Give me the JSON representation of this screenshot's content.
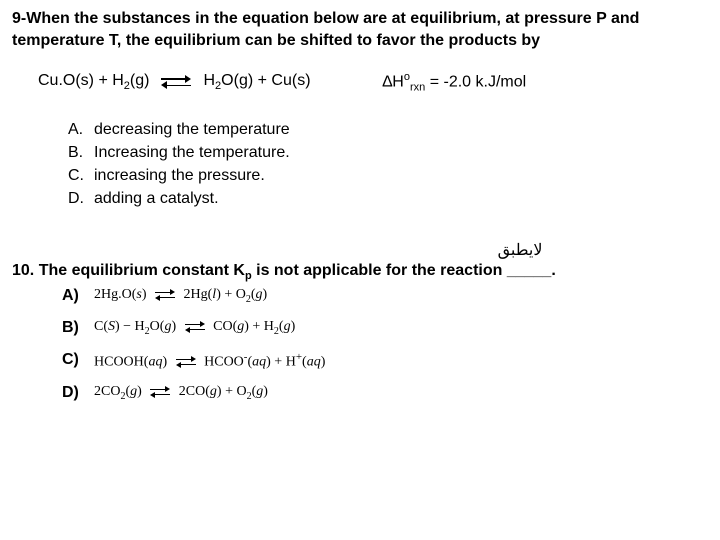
{
  "q9": {
    "header": "9-When the substances in the equation below are at equilibrium, at pressure P and temperature T, the equilibrium can be shifted to favor the products by",
    "left": "Cu.O(s) + H",
    "left_sub": "2",
    "left_tail": "(g)",
    "right_a": "H",
    "right_a_sub": "2",
    "right_b": "O(g) + Cu(s)",
    "dh_delta": "∆H",
    "dh_sup": "o",
    "dh_sub": "rxn",
    "dh_val": " = -2.0 k.J/mol",
    "options": [
      {
        "letter": "A.",
        "text": "decreasing the temperature"
      },
      {
        "letter": "B.",
        "text": "Increasing the temperature."
      },
      {
        "letter": "C.",
        "text": "increasing the pressure."
      },
      {
        "letter": "D.",
        "text": "adding a catalyst."
      }
    ]
  },
  "arabic": "لايطبق",
  "q10": {
    "num": "10.",
    "text_a": "The equilibrium constant K",
    "text_sub": "p",
    "text_b": " is not applicable for the reaction ",
    "blank": "_____",
    "tail": ".",
    "opts": [
      {
        "letter": "A)",
        "pre": "2Hg.O(",
        "s1": "s",
        "mid1": ")",
        "right_pre": "2Hg(",
        "s2": "l",
        "right_mid": ") + O",
        "sub2": "2",
        "right_tail": "(",
        "s3": "g",
        "close": ")"
      },
      {
        "letter": "B)",
        "pre": "C(",
        "s1": "S",
        "mid1": ")  − H",
        "sub1": "2",
        "mid2": "O(",
        "s2": "g",
        "mid3": ")",
        "right_pre": "CO(",
        "s3": "g",
        "right_mid": ") + H",
        "sub2": "2",
        "right_tail": "(",
        "s4": "g",
        "close": ")"
      },
      {
        "letter": "C)",
        "pre": "HCOOH(",
        "s1": "aq",
        "mid1": ")",
        "right_pre": "HCOO",
        "supn": "-",
        "right_pre2": "(",
        "s2": "aq",
        "right_mid": ") + H",
        "supp": "+",
        "right_tail": "(",
        "s3": "aq",
        "close": ")"
      },
      {
        "letter": "D)",
        "pre": "2CO",
        "sub0": "2",
        "mid0": "(",
        "s1": "g",
        "mid1": ")",
        "right_pre": "2CO(",
        "s2": "g",
        "right_mid": ") + O",
        "sub2": "2",
        "right_tail": "(",
        "s3": "g",
        "close": ")"
      }
    ]
  }
}
